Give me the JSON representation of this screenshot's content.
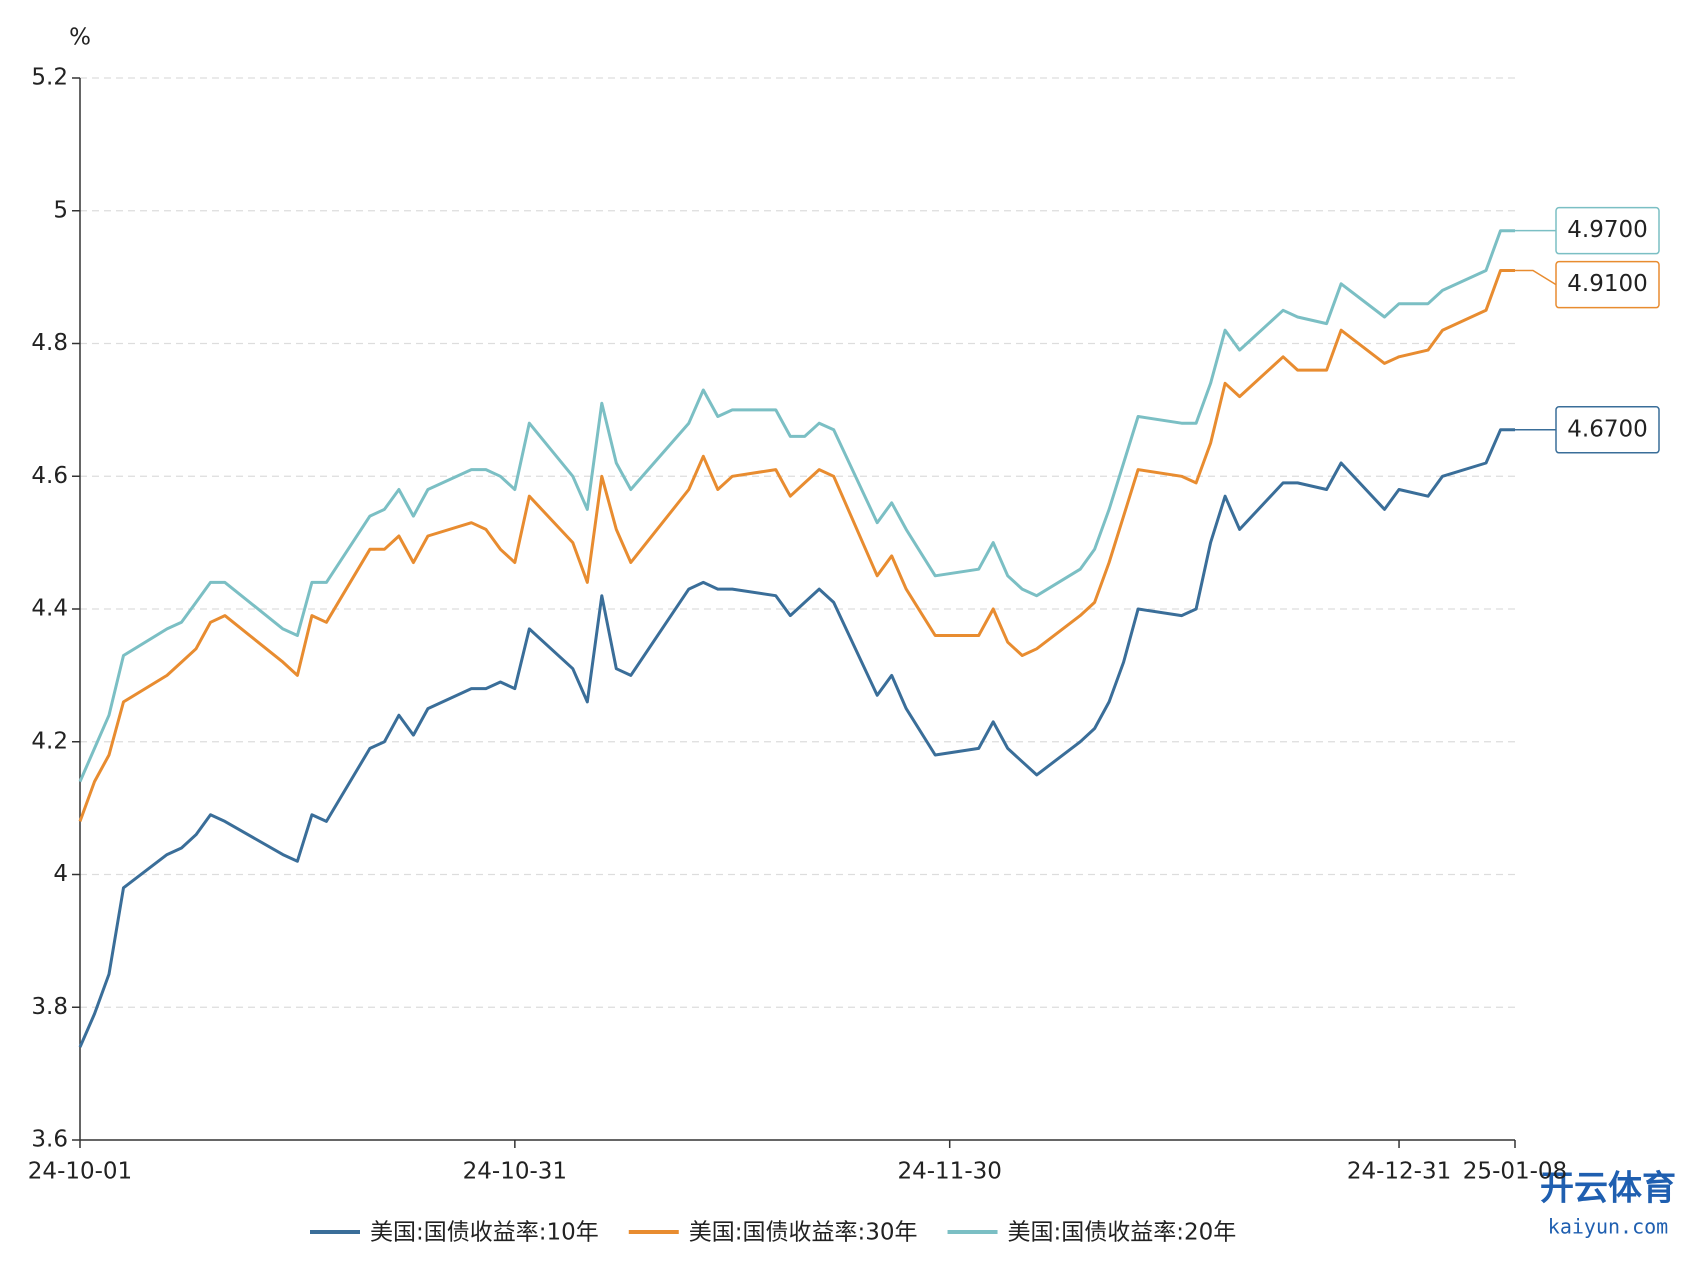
{
  "chart_data": {
    "type": "line",
    "y_label": "%",
    "x": [
      "24-10-01",
      "24-10-02",
      "24-10-03",
      "24-10-04",
      "24-10-07",
      "24-10-08",
      "24-10-09",
      "24-10-10",
      "24-10-11",
      "24-10-15",
      "24-10-16",
      "24-10-17",
      "24-10-18",
      "24-10-21",
      "24-10-22",
      "24-10-23",
      "24-10-24",
      "24-10-25",
      "24-10-28",
      "24-10-29",
      "24-10-30",
      "24-10-31",
      "24-11-01",
      "24-11-04",
      "24-11-05",
      "24-11-06",
      "24-11-07",
      "24-11-08",
      "24-11-12",
      "24-11-13",
      "24-11-14",
      "24-11-15",
      "24-11-18",
      "24-11-19",
      "24-11-20",
      "24-11-21",
      "24-11-22",
      "24-11-25",
      "24-11-26",
      "24-11-27",
      "24-11-29",
      "24-12-02",
      "24-12-03",
      "24-12-04",
      "24-12-05",
      "24-12-06",
      "24-12-09",
      "24-12-10",
      "24-12-11",
      "24-12-12",
      "24-12-13",
      "24-12-16",
      "24-12-17",
      "24-12-18",
      "24-12-19",
      "24-12-20",
      "24-12-23",
      "24-12-24",
      "24-12-26",
      "24-12-27",
      "24-12-30",
      "24-12-31",
      "25-01-02",
      "25-01-03",
      "25-01-06",
      "25-01-07",
      "25-01-08"
    ],
    "series": [
      {
        "name": "美国:国债收益率:10年",
        "color": "#3a6e99",
        "values": [
          3.74,
          3.79,
          3.85,
          3.98,
          4.03,
          4.04,
          4.06,
          4.09,
          4.08,
          4.03,
          4.02,
          4.09,
          4.08,
          4.19,
          4.2,
          4.24,
          4.21,
          4.25,
          4.28,
          4.28,
          4.29,
          4.28,
          4.37,
          4.31,
          4.26,
          4.42,
          4.31,
          4.3,
          4.43,
          4.44,
          4.43,
          4.43,
          4.42,
          4.39,
          4.41,
          4.43,
          4.41,
          4.27,
          4.3,
          4.25,
          4.18,
          4.19,
          4.23,
          4.19,
          4.17,
          4.15,
          4.2,
          4.22,
          4.26,
          4.32,
          4.4,
          4.39,
          4.4,
          4.5,
          4.57,
          4.52,
          4.59,
          4.59,
          4.58,
          4.62,
          4.55,
          4.58,
          4.57,
          4.6,
          4.62,
          4.67,
          4.67
        ],
        "value_labels": [
          null,
          null,
          null,
          null,
          null,
          null,
          null,
          null,
          null,
          null,
          null,
          null,
          null,
          null,
          null,
          null,
          null,
          null,
          null,
          null,
          null,
          null,
          null,
          null,
          null,
          null,
          null,
          null,
          null,
          null,
          null,
          null,
          null,
          null,
          null,
          null,
          null,
          null,
          null,
          null,
          null,
          null,
          null,
          null,
          null,
          null,
          null,
          null,
          null,
          null,
          null,
          null,
          null,
          null,
          null,
          null,
          null,
          null,
          null,
          null,
          null,
          null,
          null,
          null,
          null,
          null,
          "4.6700"
        ]
      },
      {
        "name": "美国:国债收益率:30年",
        "color": "#e88c30",
        "values": [
          4.08,
          4.14,
          4.18,
          4.26,
          4.3,
          4.32,
          4.34,
          4.38,
          4.39,
          4.32,
          4.3,
          4.39,
          4.38,
          4.49,
          4.49,
          4.51,
          4.47,
          4.51,
          4.53,
          4.52,
          4.49,
          4.47,
          4.57,
          4.5,
          4.44,
          4.6,
          4.52,
          4.47,
          4.58,
          4.63,
          4.58,
          4.6,
          4.61,
          4.57,
          4.59,
          4.61,
          4.6,
          4.45,
          4.48,
          4.43,
          4.36,
          4.36,
          4.4,
          4.35,
          4.33,
          4.34,
          4.39,
          4.41,
          4.47,
          4.54,
          4.61,
          4.6,
          4.59,
          4.65,
          4.74,
          4.72,
          4.78,
          4.76,
          4.76,
          4.82,
          4.77,
          4.78,
          4.79,
          4.82,
          4.85,
          4.91,
          4.91
        ],
        "value_labels": [
          null,
          null,
          null,
          null,
          null,
          null,
          null,
          null,
          null,
          null,
          null,
          null,
          null,
          null,
          null,
          null,
          null,
          null,
          null,
          null,
          null,
          null,
          null,
          null,
          null,
          null,
          null,
          null,
          null,
          null,
          null,
          null,
          null,
          null,
          null,
          null,
          null,
          null,
          null,
          null,
          null,
          null,
          null,
          null,
          null,
          null,
          null,
          null,
          null,
          null,
          null,
          null,
          null,
          null,
          null,
          null,
          null,
          null,
          null,
          null,
          null,
          null,
          null,
          null,
          null,
          null,
          "4.9100"
        ]
      },
      {
        "name": "美国:国债收益率:20年",
        "color": "#7bbfc4",
        "values": [
          4.14,
          4.19,
          4.24,
          4.33,
          4.37,
          4.38,
          4.41,
          4.44,
          4.44,
          4.37,
          4.36,
          4.44,
          4.44,
          4.54,
          4.55,
          4.58,
          4.54,
          4.58,
          4.61,
          4.61,
          4.6,
          4.58,
          4.68,
          4.6,
          4.55,
          4.71,
          4.62,
          4.58,
          4.68,
          4.73,
          4.69,
          4.7,
          4.7,
          4.66,
          4.66,
          4.68,
          4.67,
          4.53,
          4.56,
          4.52,
          4.45,
          4.46,
          4.5,
          4.45,
          4.43,
          4.42,
          4.46,
          4.49,
          4.55,
          4.62,
          4.69,
          4.68,
          4.68,
          4.74,
          4.82,
          4.79,
          4.85,
          4.84,
          4.83,
          4.89,
          4.84,
          4.86,
          4.86,
          4.88,
          4.91,
          4.97,
          4.97
        ],
        "value_labels": [
          null,
          null,
          null,
          null,
          null,
          null,
          null,
          null,
          null,
          null,
          null,
          null,
          null,
          null,
          null,
          null,
          null,
          null,
          null,
          null,
          null,
          null,
          null,
          null,
          null,
          null,
          null,
          null,
          null,
          null,
          null,
          null,
          null,
          null,
          null,
          null,
          null,
          null,
          null,
          null,
          null,
          null,
          null,
          null,
          null,
          null,
          null,
          null,
          null,
          null,
          null,
          null,
          null,
          null,
          null,
          null,
          null,
          null,
          null,
          null,
          null,
          null,
          null,
          null,
          null,
          null,
          "4.9700"
        ]
      }
    ],
    "xlim": [
      "24-10-01",
      "25-01-08"
    ],
    "xticks": [
      "24-10-01",
      "24-10-31",
      "24-11-30",
      "24-12-31",
      "25-01-08"
    ],
    "ylim": [
      3.6,
      5.2
    ],
    "yticks": [
      3.6,
      3.8,
      4,
      4.2,
      4.4,
      4.6,
      4.8,
      5,
      5.2
    ],
    "grid": true,
    "legend": "bottom"
  },
  "watermark": {
    "brand": "开云体育",
    "site": "kaiyun.com"
  }
}
